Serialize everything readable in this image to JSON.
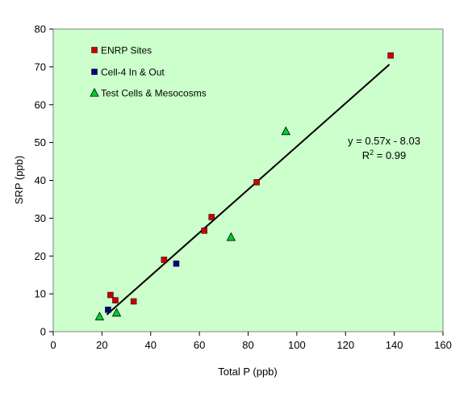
{
  "chart_data": {
    "type": "scatter",
    "title": "",
    "xlabel": "Total P (ppb)",
    "ylabel": "SRP (ppb)",
    "xlim": [
      0,
      160
    ],
    "ylim": [
      0,
      80
    ],
    "xticks": [
      0,
      20,
      40,
      60,
      80,
      100,
      120,
      140,
      160
    ],
    "yticks": [
      0,
      10,
      20,
      30,
      40,
      50,
      60,
      70,
      80
    ],
    "grid": false,
    "plot_background": "#ccffcc",
    "legend_position": "top-left",
    "series": [
      {
        "name": "ENRP Sites",
        "marker": "square",
        "color": "#cc0000",
        "points": [
          [
            23.5,
            9.7
          ],
          [
            25.5,
            8.3
          ],
          [
            33,
            8
          ],
          [
            45.5,
            19
          ],
          [
            62,
            26.7
          ],
          [
            65,
            30.3
          ],
          [
            83.5,
            39.5
          ],
          [
            138.5,
            73
          ]
        ]
      },
      {
        "name": "Cell-4 In & Out",
        "marker": "square",
        "color": "#00008b",
        "points": [
          [
            22.5,
            5.8
          ],
          [
            50.5,
            18
          ]
        ]
      },
      {
        "name": "Test Cells & Mesocosms",
        "marker": "triangle",
        "color": "#00cc33",
        "points": [
          [
            19,
            4
          ],
          [
            26,
            5
          ],
          [
            73,
            25
          ],
          [
            95.5,
            53
          ]
        ]
      }
    ],
    "trendline": {
      "slope": 0.57,
      "intercept": -8.03,
      "x_range": [
        22,
        138
      ],
      "equation": "y = 0.57x - 8.03",
      "r2_prefix": "R",
      "r2_sup": "2",
      "r2_suffix": " = 0.99"
    }
  }
}
